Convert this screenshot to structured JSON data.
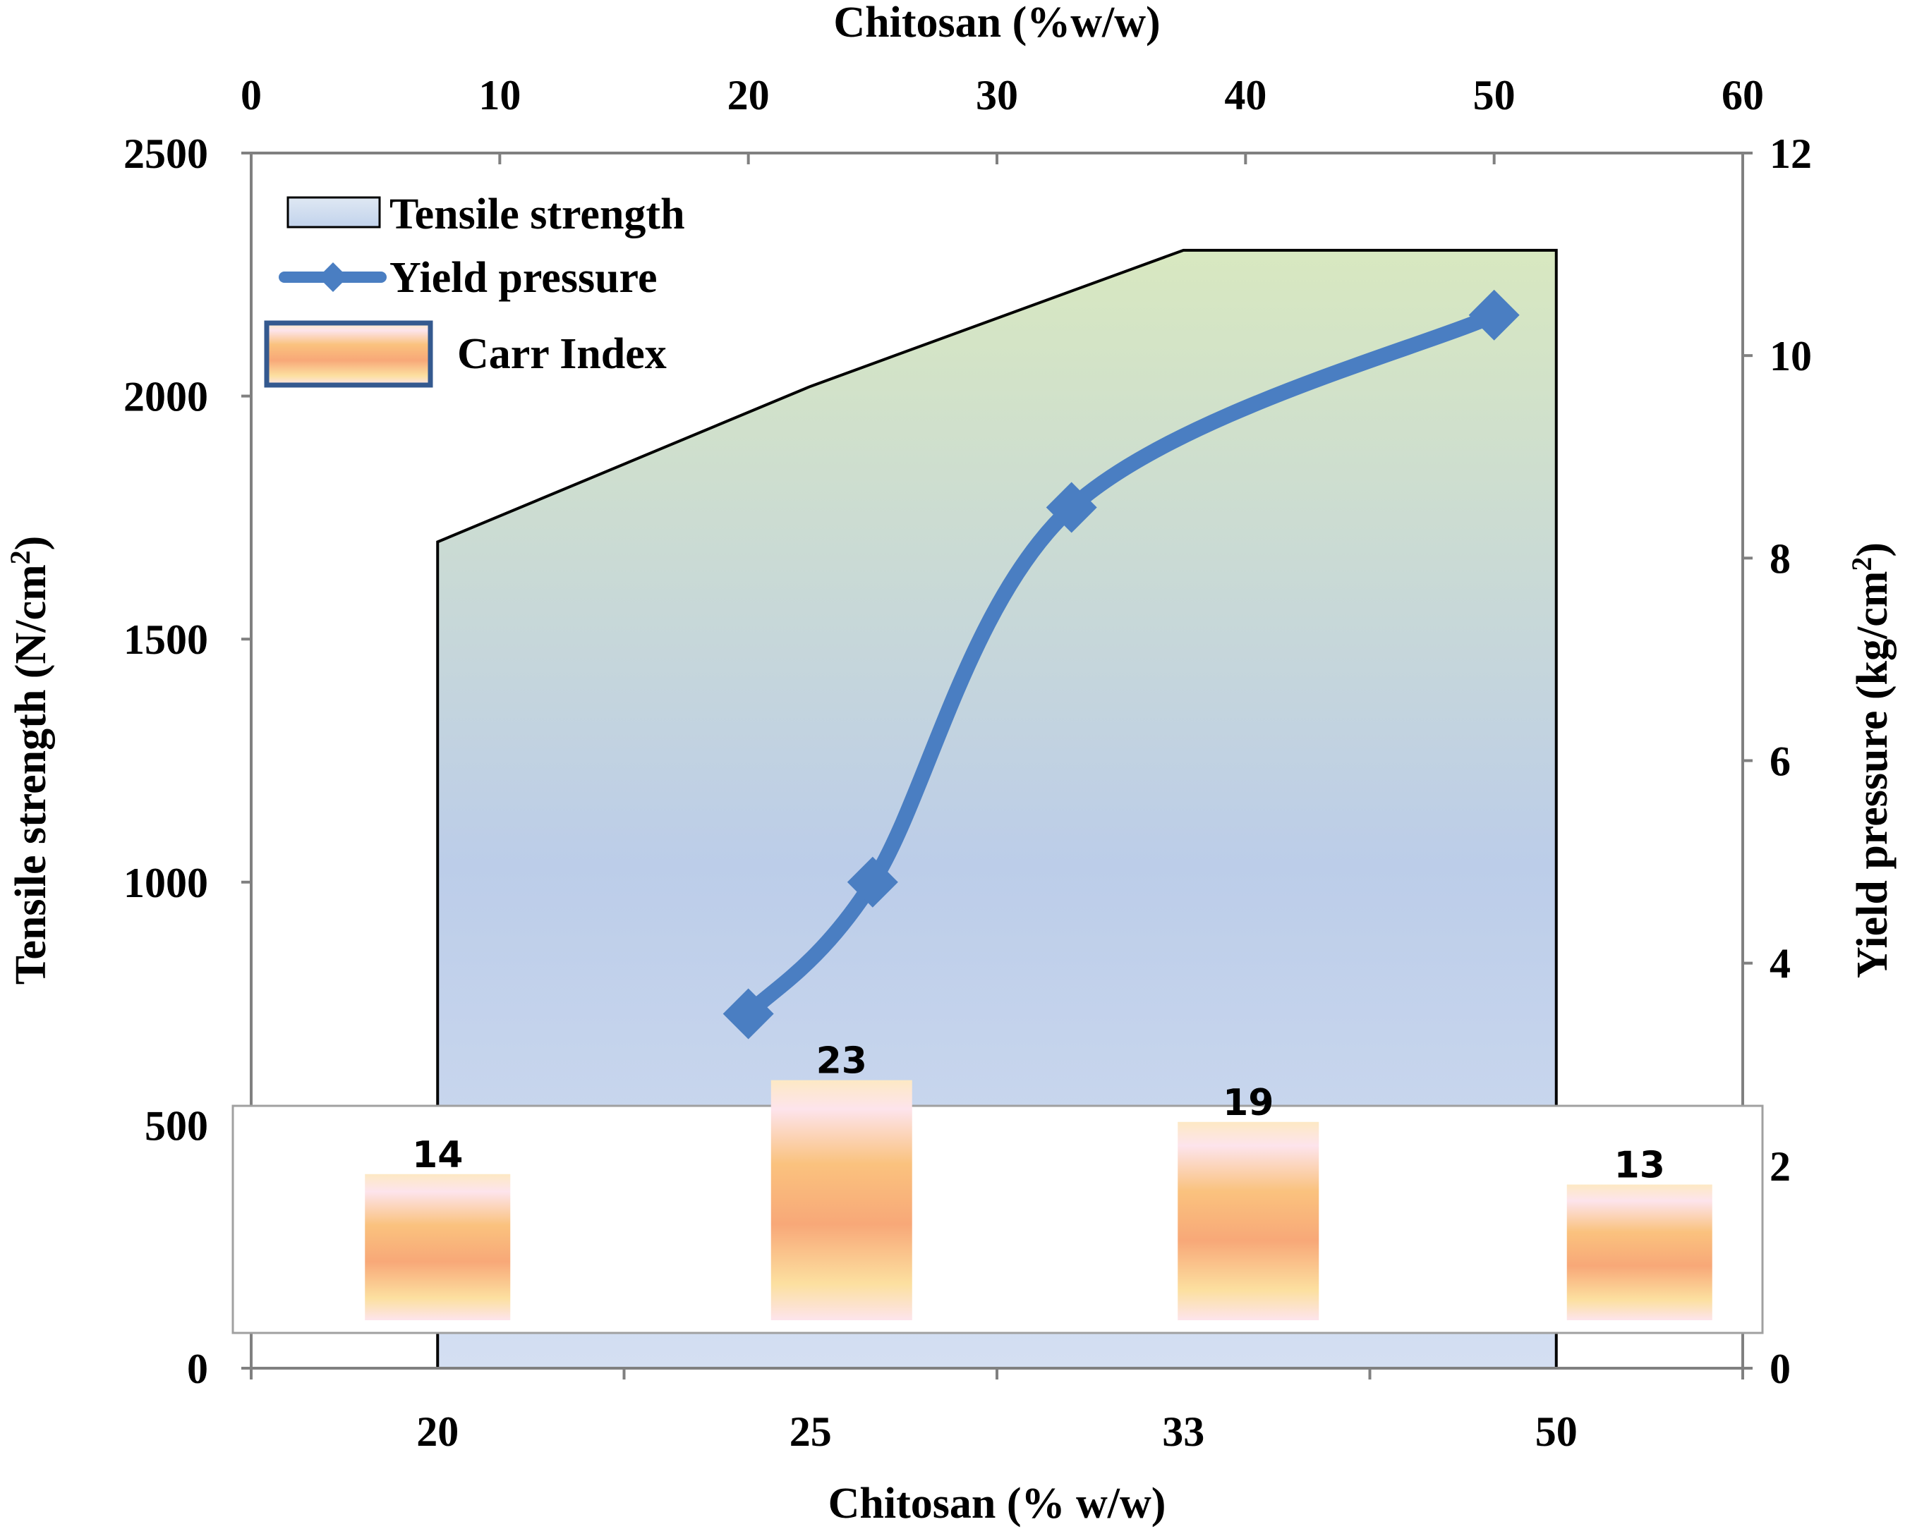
{
  "chart_data": {
    "type": "combo",
    "colors": {
      "area_top": "#d8e8c0",
      "area_bottom": "#d4dff2",
      "line": "#4a7ec2",
      "carr_orange": "#f8a878",
      "carr_yellow": "#fce0a0",
      "carr_pink": "#fde4ec",
      "axis": "#808080"
    },
    "top_axis": {
      "label": "Chitosan (%w/w)",
      "range": [
        0,
        60
      ],
      "ticks": [
        0,
        10,
        20,
        30,
        40,
        50,
        60
      ],
      "tick_labels": [
        "0",
        "10",
        "20",
        "30",
        "40",
        "50",
        "60"
      ]
    },
    "bottom_axis": {
      "label": "Chitosan (% w/w)",
      "categories": [
        "20",
        "25",
        "33",
        "50"
      ]
    },
    "left_axis": {
      "label": "Tensile strength (N/cm",
      "sup": "2",
      "label_end": ")",
      "range": [
        0,
        2500
      ],
      "ticks": [
        0,
        500,
        1000,
        1500,
        2000,
        2500
      ],
      "tick_labels": [
        "0",
        "500",
        "1000",
        "1500",
        "2000",
        "2500"
      ]
    },
    "right_axis": {
      "label": "Yield pressure (kg/cm",
      "sup": "2",
      "label_end": ")",
      "range": [
        0,
        12
      ],
      "ticks": [
        0,
        2,
        4,
        6,
        8,
        10,
        12
      ],
      "tick_labels": [
        "0",
        "2",
        "4",
        "6",
        "8",
        "10",
        "12"
      ]
    },
    "series": [
      {
        "name": "Tensile strength",
        "kind": "area",
        "axis": "left",
        "x_categories": [
          "20",
          "25",
          "33",
          "50"
        ],
        "values": [
          1700,
          2020,
          2300,
          2300
        ]
      },
      {
        "name": "Yield pressure",
        "kind": "line",
        "axis": "right",
        "x_top": [
          20,
          25,
          33,
          50
        ],
        "values": [
          3.5,
          4.8,
          8.5,
          10.4
        ]
      },
      {
        "name": "Carr Index",
        "kind": "bar",
        "categories": [
          "20",
          "25",
          "33",
          "50"
        ],
        "values": [
          14,
          23,
          19,
          13
        ],
        "value_labels": [
          "14",
          "23",
          "19",
          "13"
        ]
      }
    ],
    "legend": {
      "position": "top-left",
      "items": [
        "Tensile strength",
        "Yield pressure",
        "Carr Index"
      ]
    }
  }
}
